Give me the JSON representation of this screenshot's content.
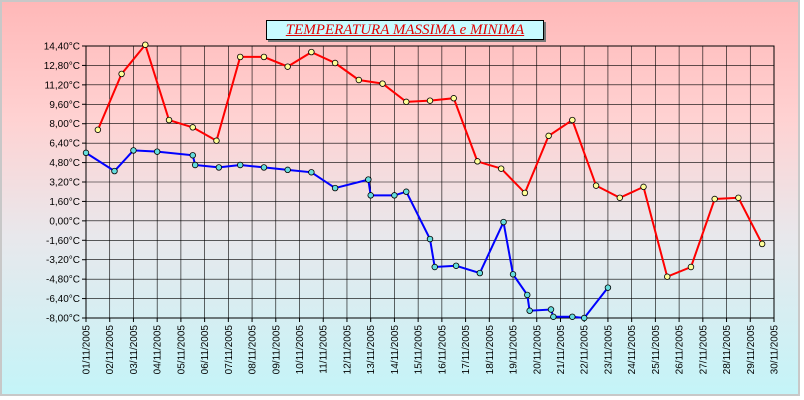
{
  "chart_data": {
    "type": "line",
    "title": "TEMPERATURA MASSIMA e MINIMA",
    "xlabel": "",
    "ylabel": "",
    "ylim": [
      -8.0,
      14.4
    ],
    "y_ticks": [
      "14,40°C",
      "12,80°C",
      "11,20°C",
      "9,60°C",
      "8,00°C",
      "6,40°C",
      "4,80°C",
      "3,20°C",
      "1,60°C",
      "0,00°C",
      "-1,60°C",
      "-3,20°C",
      "-4,80°C",
      "-6,40°C",
      "-8,00°C"
    ],
    "y_tick_values": [
      14.4,
      12.8,
      11.2,
      9.6,
      8.0,
      6.4,
      4.8,
      3.2,
      1.6,
      0.0,
      -1.6,
      -3.2,
      -4.8,
      -6.4,
      -8.0
    ],
    "x_labels": [
      "01/11/2005",
      "02/11/2005",
      "03/11/2005",
      "04/11/2005",
      "05/11/2005",
      "06/11/2005",
      "07/11/2005",
      "08/11/2005",
      "09/11/2005",
      "10/11/2005",
      "11/11/2005",
      "12/11/2005",
      "13/11/2005",
      "14/11/2005",
      "15/11/2005",
      "16/11/2005",
      "17/11/2005",
      "18/11/2005",
      "19/11/2005",
      "20/11/2005",
      "21/11/2005",
      "22/11/2005",
      "23/11/2005",
      "24/11/2005",
      "25/11/2005",
      "26/11/2005",
      "27/11/2005",
      "28/11/2005",
      "29/11/2005",
      "30/11/2005"
    ],
    "grid": true,
    "series": [
      {
        "color": "#ff0000",
        "marker_color": "#ffff99",
        "points": [
          [
            1.5,
            7.5
          ],
          [
            2.5,
            12.1
          ],
          [
            3.5,
            14.5
          ],
          [
            4.5,
            8.3
          ],
          [
            5.5,
            7.7
          ],
          [
            6.5,
            6.6
          ],
          [
            7.5,
            13.5
          ],
          [
            8.5,
            13.5
          ],
          [
            9.5,
            12.7
          ],
          [
            10.5,
            13.9
          ],
          [
            11.5,
            13.0
          ],
          [
            12.5,
            11.6
          ],
          [
            13.5,
            11.3
          ],
          [
            14.5,
            9.8
          ],
          [
            15.5,
            9.9
          ],
          [
            16.5,
            10.1
          ],
          [
            17.5,
            4.9
          ],
          [
            18.5,
            4.3
          ],
          [
            19.5,
            2.3
          ],
          [
            20.5,
            7.0
          ],
          [
            21.5,
            8.3
          ],
          [
            22.5,
            2.9
          ],
          [
            23.5,
            1.9
          ],
          [
            24.5,
            2.8
          ],
          [
            25.5,
            -4.6
          ],
          [
            26.5,
            -3.8
          ],
          [
            27.5,
            1.8
          ],
          [
            28.5,
            1.9
          ],
          [
            29.5,
            -1.9
          ]
        ]
      },
      {
        "color": "#0000ff",
        "marker_color": "#66dddd",
        "points": [
          [
            1,
            5.6
          ],
          [
            2.2,
            4.1
          ],
          [
            3,
            5.8
          ],
          [
            4,
            5.7
          ],
          [
            5.5,
            5.4
          ],
          [
            5.6,
            4.6
          ],
          [
            6.6,
            4.4
          ],
          [
            7.5,
            4.6
          ],
          [
            8.5,
            4.4
          ],
          [
            9.5,
            4.2
          ],
          [
            10.5,
            4.0
          ],
          [
            11.5,
            2.7
          ],
          [
            12.9,
            3.4
          ],
          [
            13,
            2.1
          ],
          [
            14,
            2.1
          ],
          [
            14.5,
            2.4
          ],
          [
            15.5,
            -1.5
          ],
          [
            15.7,
            -3.8
          ],
          [
            16.6,
            -3.7
          ],
          [
            17.6,
            -4.3
          ],
          [
            18.6,
            -0.1
          ],
          [
            19,
            -4.4
          ],
          [
            19.6,
            -6.1
          ],
          [
            19.7,
            -7.4
          ],
          [
            20.6,
            -7.3
          ],
          [
            20.7,
            -7.9
          ],
          [
            21.5,
            -7.9
          ],
          [
            22,
            -8.0
          ],
          [
            23,
            -5.5
          ]
        ]
      }
    ]
  }
}
